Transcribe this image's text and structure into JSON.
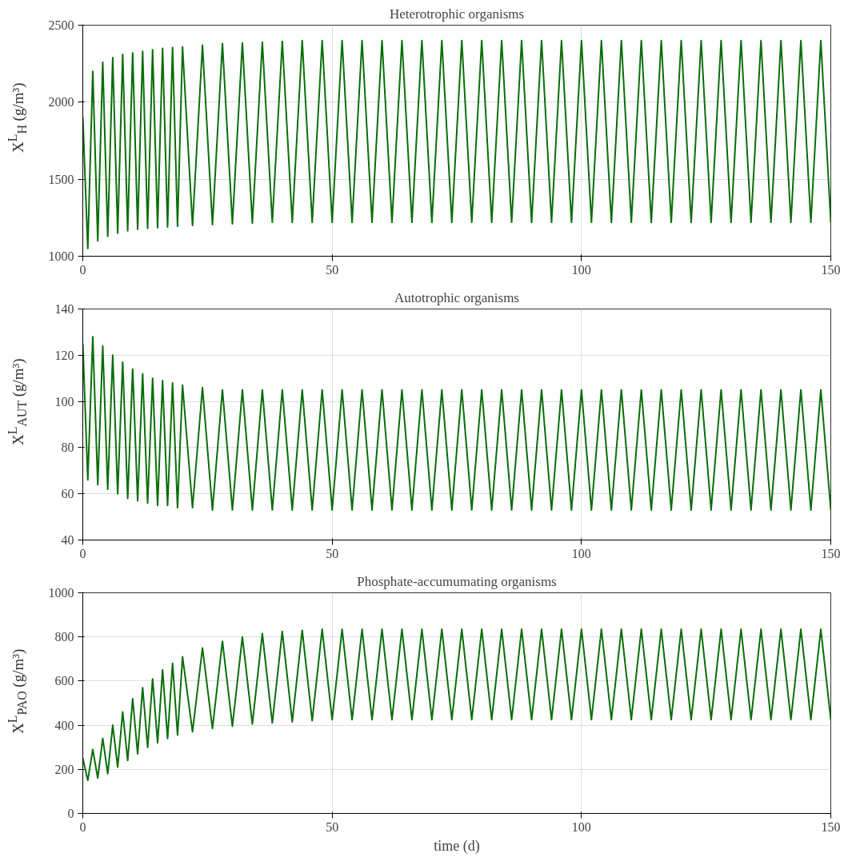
{
  "chart_data": [
    {
      "type": "line",
      "title": "Heterotrophic organisms",
      "ylabel": "X$^{L}$$_{H}$ (g/m³)",
      "xlim": [
        0,
        150
      ],
      "xticks": [
        0,
        50,
        100,
        150
      ],
      "ylim": [
        1000,
        2500
      ],
      "yticks": [
        1000,
        1500,
        2000,
        2500
      ],
      "grid": true,
      "x": [
        0,
        1,
        2,
        3,
        4,
        5,
        6,
        7,
        8,
        9,
        10,
        11,
        12,
        13,
        14,
        15,
        16,
        17,
        18,
        19,
        20,
        22,
        24,
        26,
        28,
        30,
        32,
        34,
        36,
        38,
        40,
        42,
        44,
        46,
        48,
        50,
        52,
        54,
        56,
        58,
        60,
        62,
        64,
        66,
        68,
        70,
        72,
        74,
        76,
        78,
        80,
        82,
        84,
        86,
        88,
        90,
        92,
        94,
        96,
        98,
        100,
        102,
        104,
        106,
        108,
        110,
        112,
        114,
        116,
        118,
        120,
        122,
        124,
        126,
        128,
        130,
        132,
        134,
        136,
        138,
        140,
        142,
        144,
        146,
        148,
        150
      ],
      "series": [
        {
          "color": "#0a6e0a",
          "values": [
            1900,
            1050,
            2200,
            1100,
            2260,
            1130,
            2290,
            1150,
            2310,
            1165,
            2320,
            1175,
            2330,
            1180,
            2340,
            1185,
            2350,
            1190,
            2355,
            1195,
            2360,
            1200,
            2370,
            1205,
            2380,
            1210,
            2385,
            1215,
            2390,
            1220,
            2395,
            1220,
            2400,
            1220,
            2400,
            1220,
            2400,
            1220,
            2400,
            1220,
            2400,
            1220,
            2400,
            1220,
            2400,
            1220,
            2400,
            1220,
            2400,
            1220,
            2400,
            1220,
            2400,
            1220,
            2400,
            1220,
            2400,
            1220,
            2400,
            1220,
            2400,
            1220,
            2400,
            1220,
            2400,
            1220,
            2400,
            1220,
            2400,
            1220,
            2400,
            1220,
            2400,
            1220,
            2400,
            1220,
            2400,
            1220,
            2400,
            1220,
            2400,
            1220,
            2400,
            1220,
            2400,
            1220
          ]
        }
      ]
    },
    {
      "type": "line",
      "title": "Autotrophic organisms",
      "ylabel": "X$^{L}$$_{AUT}$ (g/m³)",
      "xlim": [
        0,
        150
      ],
      "xticks": [
        0,
        50,
        100,
        150
      ],
      "ylim": [
        40,
        140
      ],
      "yticks": [
        40,
        60,
        80,
        100,
        120,
        140
      ],
      "grid": true,
      "x": [
        0,
        1,
        2,
        3,
        4,
        5,
        6,
        7,
        8,
        9,
        10,
        11,
        12,
        13,
        14,
        15,
        16,
        17,
        18,
        19,
        20,
        22,
        24,
        26,
        28,
        30,
        32,
        34,
        36,
        38,
        40,
        42,
        44,
        46,
        48,
        50,
        52,
        54,
        56,
        58,
        60,
        62,
        64,
        66,
        68,
        70,
        72,
        74,
        76,
        78,
        80,
        82,
        84,
        86,
        88,
        90,
        92,
        94,
        96,
        98,
        100,
        102,
        104,
        106,
        108,
        110,
        112,
        114,
        116,
        118,
        120,
        122,
        124,
        126,
        128,
        130,
        132,
        134,
        136,
        138,
        140,
        142,
        144,
        146,
        148,
        150
      ],
      "series": [
        {
          "color": "#0a6e0a",
          "values": [
            125,
            66,
            128,
            64,
            124,
            62,
            120,
            60,
            117,
            58,
            114,
            57,
            112,
            56,
            110,
            55,
            109,
            55,
            108,
            54,
            107,
            54,
            106,
            53,
            105,
            53,
            105,
            53,
            105,
            53,
            105,
            53,
            105,
            53,
            105,
            53,
            105,
            53,
            105,
            53,
            105,
            53,
            105,
            53,
            105,
            53,
            105,
            53,
            105,
            53,
            105,
            53,
            105,
            53,
            105,
            53,
            105,
            53,
            105,
            53,
            105,
            53,
            105,
            53,
            105,
            53,
            105,
            53,
            105,
            53,
            105,
            53,
            105,
            53,
            105,
            53,
            105,
            53,
            105,
            53,
            105,
            53,
            105,
            53,
            105,
            53
          ]
        }
      ]
    },
    {
      "type": "line",
      "title": "Phosphate-accumumating organisms",
      "xlabel": "time (d)",
      "ylabel": "X$^{L}$$_{PAO}$ (g/m³)",
      "xlim": [
        0,
        150
      ],
      "xticks": [
        0,
        50,
        100,
        150
      ],
      "ylim": [
        0,
        1000
      ],
      "yticks": [
        0,
        200,
        400,
        600,
        800,
        1000
      ],
      "grid": true,
      "x": [
        0,
        1,
        2,
        3,
        4,
        5,
        6,
        7,
        8,
        9,
        10,
        11,
        12,
        13,
        14,
        15,
        16,
        17,
        18,
        19,
        20,
        22,
        24,
        26,
        28,
        30,
        32,
        34,
        36,
        38,
        40,
        42,
        44,
        46,
        48,
        50,
        52,
        54,
        56,
        58,
        60,
        62,
        64,
        66,
        68,
        70,
        72,
        74,
        76,
        78,
        80,
        82,
        84,
        86,
        88,
        90,
        92,
        94,
        96,
        98,
        100,
        102,
        104,
        106,
        108,
        110,
        112,
        114,
        116,
        118,
        120,
        122,
        124,
        126,
        128,
        130,
        132,
        134,
        136,
        138,
        140,
        142,
        144,
        146,
        148,
        150
      ],
      "series": [
        {
          "color": "#0a6e0a",
          "values": [
            250,
            150,
            290,
            160,
            340,
            180,
            400,
            210,
            460,
            240,
            520,
            270,
            570,
            300,
            610,
            320,
            650,
            340,
            680,
            355,
            710,
            370,
            750,
            385,
            780,
            395,
            800,
            405,
            815,
            410,
            825,
            415,
            830,
            420,
            835,
            425,
            835,
            425,
            835,
            425,
            835,
            425,
            835,
            425,
            835,
            425,
            835,
            425,
            835,
            425,
            835,
            425,
            835,
            425,
            835,
            425,
            835,
            425,
            835,
            425,
            835,
            425,
            835,
            425,
            835,
            425,
            835,
            425,
            835,
            425,
            835,
            425,
            835,
            425,
            835,
            425,
            835,
            425,
            835,
            425,
            835,
            425,
            835,
            425,
            835,
            425
          ]
        }
      ]
    }
  ]
}
